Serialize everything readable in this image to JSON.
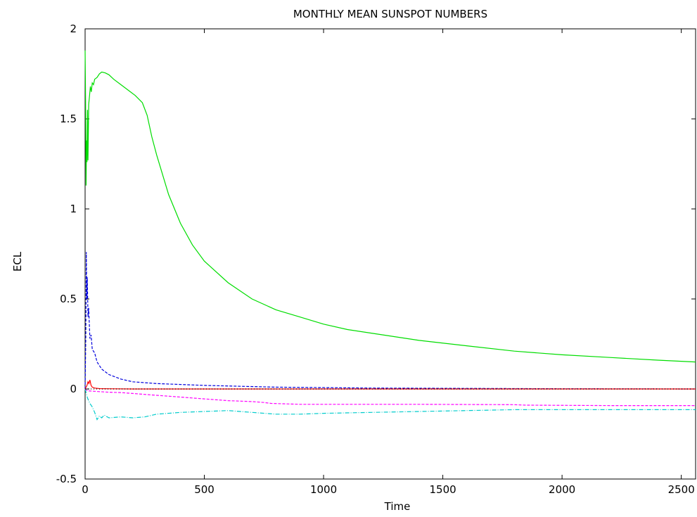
{
  "chart_data": {
    "type": "line",
    "title": "MONTHLY MEAN SUNSPOT NUMBERS",
    "xlabel": "Time",
    "ylabel": "ECL",
    "xlim": [
      0,
      2560
    ],
    "ylim": [
      -0.5,
      2
    ],
    "grid": false,
    "x_ticks": [
      0,
      500,
      1000,
      1500,
      2000,
      2500
    ],
    "y_ticks": [
      -0.5,
      0,
      0.5,
      1,
      1.5,
      2
    ],
    "x_tick_labels": [
      "0",
      "500",
      "1000",
      "1500",
      "2000",
      "2500"
    ],
    "y_tick_labels": [
      "-0.5",
      "0",
      "0.5",
      "1",
      "1.5",
      "2"
    ],
    "series": [
      {
        "color": "#00dd00",
        "style": "solid",
        "x": [
          0,
          2,
          4,
          6,
          8,
          10,
          12,
          15,
          18,
          22,
          26,
          30,
          35,
          40,
          50,
          60,
          70,
          85,
          100,
          120,
          150,
          180,
          210,
          240,
          260,
          280,
          300,
          350,
          400,
          450,
          500,
          600,
          700,
          800,
          900,
          1000,
          1100,
          1200,
          1400,
          1600,
          1800,
          2000,
          2200,
          2400,
          2560
        ],
        "y": [
          1.88,
          1.6,
          1.13,
          1.38,
          1.26,
          1.55,
          1.27,
          1.58,
          1.62,
          1.68,
          1.65,
          1.7,
          1.69,
          1.72,
          1.73,
          1.75,
          1.76,
          1.755,
          1.745,
          1.72,
          1.69,
          1.66,
          1.63,
          1.59,
          1.52,
          1.4,
          1.3,
          1.08,
          0.92,
          0.8,
          0.71,
          0.59,
          0.5,
          0.44,
          0.4,
          0.36,
          0.33,
          0.31,
          0.27,
          0.24,
          0.21,
          0.19,
          0.175,
          0.16,
          0.15
        ]
      },
      {
        "color": "#0000dd",
        "style": "dashed",
        "x": [
          0,
          3,
          5,
          7,
          9,
          12,
          15,
          20,
          25,
          30,
          40,
          50,
          70,
          100,
          150,
          200,
          300,
          500,
          800,
          1200,
          1600,
          2000,
          2560
        ],
        "y": [
          0.0,
          0.3,
          0.76,
          0.5,
          0.62,
          0.4,
          0.45,
          0.28,
          0.3,
          0.22,
          0.2,
          0.15,
          0.11,
          0.08,
          0.055,
          0.04,
          0.03,
          0.02,
          0.01,
          0.005,
          0.003,
          0.001,
          0.0
        ]
      },
      {
        "color": "#ff00ff",
        "style": "dashed",
        "x": [
          0,
          10,
          30,
          60,
          100,
          150,
          200,
          300,
          400,
          500,
          600,
          700,
          750,
          780,
          900,
          1100,
          1400,
          1800,
          1850,
          2200,
          2560
        ],
        "y": [
          0.0,
          -0.01,
          -0.012,
          -0.015,
          -0.018,
          -0.02,
          -0.025,
          -0.035,
          -0.045,
          -0.055,
          -0.065,
          -0.07,
          -0.075,
          -0.08,
          -0.085,
          -0.085,
          -0.085,
          -0.087,
          -0.09,
          -0.092,
          -0.092
        ]
      },
      {
        "color": "#00cccc",
        "style": "dashdot",
        "x": [
          0,
          10,
          20,
          30,
          40,
          50,
          60,
          70,
          80,
          100,
          150,
          200,
          250,
          300,
          400,
          500,
          600,
          650,
          700,
          800,
          900,
          1000,
          1200,
          1400,
          1600,
          1800,
          2000,
          2200,
          2560
        ],
        "y": [
          0.0,
          -0.05,
          -0.08,
          -0.1,
          -0.13,
          -0.17,
          -0.15,
          -0.16,
          -0.145,
          -0.16,
          -0.155,
          -0.16,
          -0.155,
          -0.14,
          -0.13,
          -0.125,
          -0.12,
          -0.125,
          -0.13,
          -0.14,
          -0.14,
          -0.135,
          -0.13,
          -0.125,
          -0.12,
          -0.115,
          -0.115,
          -0.115,
          -0.115
        ]
      },
      {
        "color": "#ff0000",
        "style": "solid",
        "x": [
          0,
          8,
          12,
          16,
          20,
          25,
          30,
          40,
          60,
          100,
          200,
          400,
          800,
          1200,
          2560
        ],
        "y": [
          0.0,
          0.02,
          0.04,
          0.03,
          0.05,
          0.02,
          0.01,
          0.005,
          0.002,
          0.001,
          0.0,
          0.0,
          0.0,
          0.0,
          0.0
        ]
      },
      {
        "color": "#000000",
        "style": "dotted",
        "x": [
          0,
          30,
          100,
          300,
          600,
          900,
          1200,
          1500,
          2000,
          2560
        ],
        "y": [
          0.0,
          0.0,
          0.0,
          0.0,
          0.0,
          0.0,
          0.0,
          0.0,
          0.0,
          0.0
        ]
      }
    ]
  }
}
